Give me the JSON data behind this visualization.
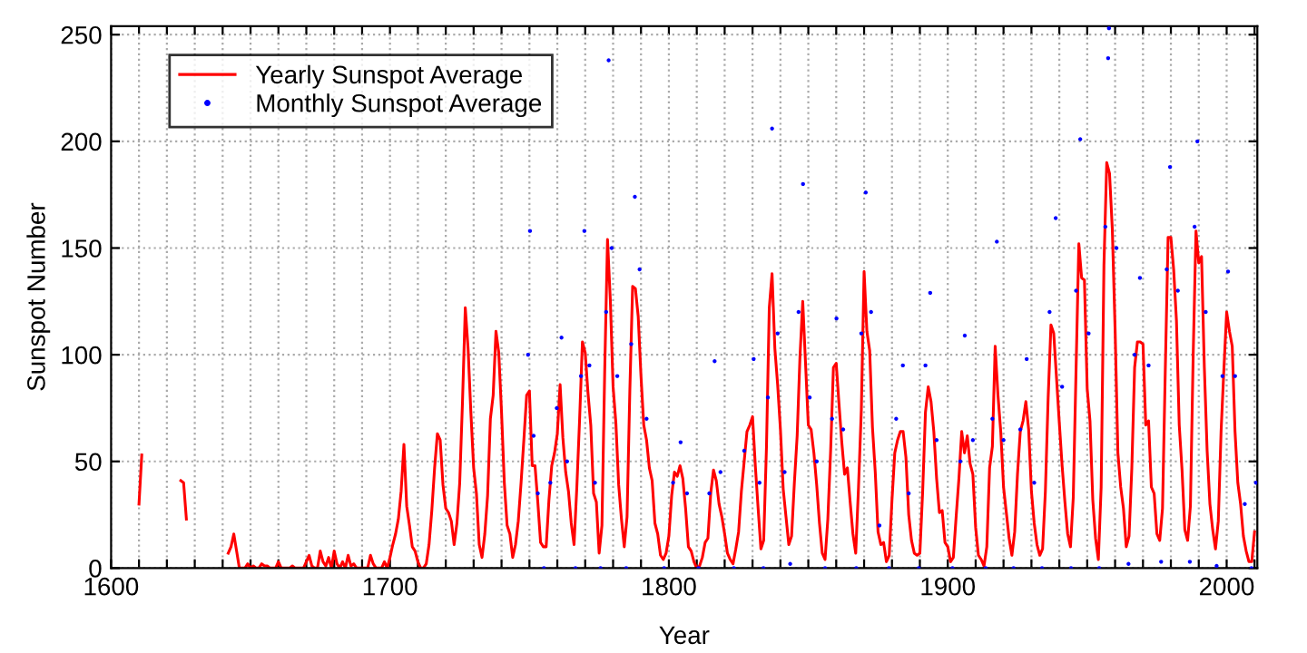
{
  "chart_data": {
    "type": "line",
    "xlabel": "Year",
    "ylabel": "Sunspot Number",
    "xlim": [
      1600,
      2011
    ],
    "ylim": [
      0,
      254
    ],
    "xticks": [
      1600,
      {
        "value": 1610,
        "label": null
      },
      {
        "value": 1620,
        "label": null
      },
      {
        "value": 1630,
        "label": null
      },
      {
        "value": 1640,
        "label": null
      },
      {
        "value": 1650,
        "label": null
      },
      {
        "value": 1660,
        "label": null
      },
      {
        "value": 1670,
        "label": null
      },
      {
        "value": 1680,
        "label": null
      },
      {
        "value": 1690,
        "label": null
      },
      1700,
      {
        "value": 1710,
        "label": null
      },
      {
        "value": 1720,
        "label": null
      },
      {
        "value": 1730,
        "label": null
      },
      {
        "value": 1740,
        "label": null
      },
      {
        "value": 1750,
        "label": null
      },
      {
        "value": 1760,
        "label": null
      },
      {
        "value": 1770,
        "label": null
      },
      {
        "value": 1780,
        "label": null
      },
      {
        "value": 1790,
        "label": null
      },
      1800,
      {
        "value": 1810,
        "label": null
      },
      {
        "value": 1820,
        "label": null
      },
      {
        "value": 1830,
        "label": null
      },
      {
        "value": 1840,
        "label": null
      },
      {
        "value": 1850,
        "label": null
      },
      {
        "value": 1860,
        "label": null
      },
      {
        "value": 1870,
        "label": null
      },
      {
        "value": 1880,
        "label": null
      },
      {
        "value": 1890,
        "label": null
      },
      1900,
      {
        "value": 1910,
        "label": null
      },
      {
        "value": 1920,
        "label": null
      },
      {
        "value": 1930,
        "label": null
      },
      {
        "value": 1940,
        "label": null
      },
      {
        "value": 1950,
        "label": null
      },
      {
        "value": 1960,
        "label": null
      },
      {
        "value": 1970,
        "label": null
      },
      {
        "value": 1980,
        "label": null
      },
      {
        "value": 1990,
        "label": null
      },
      2000,
      {
        "value": 2010,
        "label": null
      }
    ],
    "yticks": [
      0,
      50,
      100,
      150,
      200,
      250
    ],
    "grid": true,
    "legend": "top left",
    "series": [
      {
        "name": "Yearly Sunspot Average",
        "color": "#ff0000",
        "marker": "none",
        "x": [
          1610,
          1611,
          1612,
          1624,
          1625,
          1626,
          1627,
          1628,
          1641,
          1642,
          1643,
          1644,
          1645,
          1646,
          1647,
          1648,
          1649,
          1650,
          1651,
          1652,
          1653,
          1654,
          1655,
          1656,
          1657,
          1658,
          1659,
          1660,
          1661,
          1662,
          1663,
          1664,
          1665,
          1666,
          1667,
          1668,
          1669,
          1670,
          1671,
          1672,
          1673,
          1674,
          1675,
          1676,
          1677,
          1678,
          1679,
          1680,
          1681,
          1682,
          1683,
          1684,
          1685,
          1686,
          1687,
          1688,
          1689,
          1690,
          1691,
          1692,
          1693,
          1694,
          1695,
          1696,
          1697,
          1698,
          1699,
          1700,
          1701,
          1702,
          1703,
          1704,
          1705,
          1706,
          1707,
          1708,
          1709,
          1710,
          1711,
          1712,
          1713,
          1714,
          1715,
          1716,
          1717,
          1718,
          1719,
          1720,
          1721,
          1722,
          1723,
          1724,
          1725,
          1726,
          1727,
          1728,
          1729,
          1730,
          1731,
          1732,
          1733,
          1734,
          1735,
          1736,
          1737,
          1738,
          1739,
          1740,
          1741,
          1742,
          1743,
          1744,
          1745,
          1746,
          1747,
          1748,
          1749,
          1750,
          1751,
          1752,
          1753,
          1754,
          1755,
          1756,
          1757,
          1758,
          1759,
          1760,
          1761,
          1762,
          1763,
          1764,
          1765,
          1766,
          1767,
          1768,
          1769,
          1770,
          1771,
          1772,
          1773,
          1774,
          1775,
          1776,
          1777,
          1778,
          1779,
          1780,
          1781,
          1782,
          1783,
          1784,
          1785,
          1786,
          1787,
          1788,
          1789,
          1790,
          1791,
          1792,
          1793,
          1794,
          1795,
          1796,
          1797,
          1798,
          1799,
          1800,
          1801,
          1802,
          1803,
          1804,
          1805,
          1806,
          1807,
          1808,
          1809,
          1810,
          1811,
          1812,
          1813,
          1814,
          1815,
          1816,
          1817,
          1818,
          1819,
          1820,
          1821,
          1822,
          1823,
          1824,
          1825,
          1826,
          1827,
          1828,
          1829,
          1830,
          1831,
          1832,
          1833,
          1834,
          1835,
          1836,
          1837,
          1838,
          1839,
          1840,
          1841,
          1842,
          1843,
          1844,
          1845,
          1846,
          1847,
          1848,
          1849,
          1850,
          1851,
          1852,
          1853,
          1854,
          1855,
          1856,
          1857,
          1858,
          1859,
          1860,
          1861,
          1862,
          1863,
          1864,
          1865,
          1866,
          1867,
          1868,
          1869,
          1870,
          1871,
          1872,
          1873,
          1874,
          1875,
          1876,
          1877,
          1878,
          1879,
          1880,
          1881,
          1882,
          1883,
          1884,
          1885,
          1886,
          1887,
          1888,
          1889,
          1890,
          1891,
          1892,
          1893,
          1894,
          1895,
          1896,
          1897,
          1898,
          1899,
          1900,
          1901,
          1902,
          1903,
          1904,
          1905,
          1906,
          1907,
          1908,
          1909,
          1910,
          1911,
          1912,
          1913,
          1914,
          1915,
          1916,
          1917,
          1918,
          1919,
          1920,
          1921,
          1922,
          1923,
          1924,
          1925,
          1926,
          1927,
          1928,
          1929,
          1930,
          1931,
          1932,
          1933,
          1934,
          1935,
          1936,
          1937,
          1938,
          1939,
          1940,
          1941,
          1942,
          1943,
          1944,
          1945,
          1946,
          1947,
          1948,
          1949,
          1950,
          1951,
          1952,
          1953,
          1954,
          1955,
          1956,
          1957,
          1958,
          1959,
          1960,
          1961,
          1962,
          1963,
          1964,
          1965,
          1966,
          1967,
          1968,
          1969,
          1970,
          1971,
          1972,
          1973,
          1974,
          1975,
          1976,
          1977,
          1978,
          1979,
          1980,
          1981,
          1982,
          1983,
          1984,
          1985,
          1986,
          1987,
          1988,
          1989,
          1990,
          1991,
          1992,
          1993,
          1994,
          1995,
          1996,
          1997,
          1998,
          1999,
          2000,
          2001,
          2002,
          2003,
          2004,
          2005,
          2006,
          2007,
          2008,
          2009,
          2010
        ],
        "values": [
          30,
          53,
          null,
          null,
          41,
          40,
          23,
          null,
          null,
          7,
          10,
          16,
          8,
          0,
          0,
          0,
          2,
          0,
          1,
          0,
          0,
          2,
          1,
          1,
          0,
          0,
          0,
          3,
          0,
          0,
          0,
          0,
          1,
          0,
          0,
          0,
          0,
          3,
          6,
          1,
          0,
          0,
          8,
          3,
          1,
          5,
          0,
          8,
          2,
          0,
          3,
          0,
          6,
          1,
          2,
          0,
          0,
          0,
          0,
          0,
          6,
          2,
          0,
          0,
          0,
          3,
          0,
          5,
          11,
          16,
          23,
          36,
          58,
          29,
          20,
          10,
          8,
          3,
          0,
          0,
          2,
          11,
          27,
          47,
          63,
          60,
          39,
          28,
          26,
          22,
          11,
          21,
          40,
          78,
          122,
          103,
          73,
          47,
          35,
          11,
          5,
          16,
          34,
          70,
          81,
          111,
          101,
          73,
          40,
          20,
          16,
          5,
          11,
          22,
          40,
          60,
          81,
          83,
          48,
          48,
          31,
          12,
          10,
          10,
          32,
          48,
          54,
          63,
          86,
          61,
          45,
          36,
          21,
          11,
          38,
          70,
          106,
          101,
          82,
          67,
          35,
          31,
          7,
          20,
          93,
          154,
          126,
          85,
          68,
          39,
          23,
          10,
          24,
          83,
          132,
          131,
          118,
          90,
          67,
          60,
          47,
          41,
          21,
          16,
          6,
          4,
          7,
          15,
          34,
          45,
          43,
          48,
          42,
          28,
          10,
          8,
          3,
          0,
          1,
          5,
          12,
          14,
          35,
          46,
          41,
          30,
          24,
          16,
          7,
          4,
          2,
          9,
          17,
          36,
          50,
          64,
          67,
          71,
          48,
          28,
          9,
          13,
          57,
          122,
          138,
          103,
          86,
          65,
          37,
          24,
          11,
          15,
          40,
          62,
          99,
          125,
          96,
          67,
          65,
          54,
          39,
          21,
          7,
          4,
          23,
          55,
          94,
          96,
          77,
          59,
          44,
          47,
          31,
          16,
          7,
          38,
          74,
          139,
          111,
          102,
          66,
          45,
          17,
          11,
          12,
          3,
          6,
          32,
          54,
          60,
          64,
          64,
          52,
          25,
          13,
          7,
          6,
          7,
          36,
          73,
          85,
          78,
          64,
          42,
          26,
          27,
          12,
          10,
          3,
          5,
          24,
          42,
          64,
          54,
          62,
          49,
          44,
          19,
          6,
          4,
          1,
          10,
          47,
          57,
          104,
          81,
          64,
          38,
          26,
          14,
          6,
          17,
          44,
          64,
          69,
          78,
          65,
          36,
          21,
          11,
          6,
          9,
          36,
          80,
          114,
          110,
          89,
          68,
          48,
          31,
          16,
          10,
          33,
          93,
          152,
          136,
          135,
          84,
          69,
          32,
          14,
          4,
          38,
          142,
          190,
          185,
          159,
          112,
          54,
          38,
          28,
          10,
          15,
          47,
          94,
          106,
          106,
          105,
          67,
          69,
          38,
          35,
          16,
          13,
          28,
          93,
          155,
          155,
          140,
          116,
          67,
          46,
          18,
          13,
          29,
          100,
          158,
          143,
          146,
          94,
          55,
          30,
          18,
          9,
          22,
          64,
          93,
          120,
          111,
          104,
          64,
          40,
          30,
          15,
          8,
          3,
          3,
          17
        ]
      },
      {
        "name": "Monthly Sunspot Average",
        "type": "scatter",
        "color": "#0000ff",
        "marker": "circle",
        "x": [
          1749.5,
          1750.2,
          1751.5,
          1753.0,
          1755.2,
          1757.5,
          1759.8,
          1761.5,
          1763.5,
          1766.5,
          1768.5,
          1769.7,
          1771.5,
          1773.5,
          1775.5,
          1777.5,
          1778.4,
          1779.5,
          1781.5,
          1784.7,
          1786.5,
          1787.8,
          1789.5,
          1792.0,
          1798.3,
          1801.5,
          1804.2,
          1806.5,
          1810.6,
          1814.5,
          1816.4,
          1818.5,
          1823.3,
          1827.0,
          1830.4,
          1832.5,
          1833.9,
          1835.5,
          1837.0,
          1839.0,
          1841.5,
          1843.5,
          1846.5,
          1848.1,
          1850.5,
          1853.0,
          1856.0,
          1858.5,
          1860.1,
          1862.5,
          1867.2,
          1869.0,
          1870.6,
          1872.5,
          1875.5,
          1878.9,
          1881.5,
          1883.9,
          1886.0,
          1889.6,
          1892.0,
          1893.7,
          1896.0,
          1901.7,
          1904.5,
          1906.1,
          1909.0,
          1913.6,
          1916.0,
          1917.6,
          1920.0,
          1923.6,
          1926.0,
          1928.3,
          1931.0,
          1933.8,
          1936.5,
          1938.7,
          1941.0,
          1944.2,
          1946.0,
          1947.5,
          1950.5,
          1954.3,
          1956.5,
          1957.5,
          1957.8,
          1960.5,
          1964.8,
          1967.0,
          1968.9,
          1972.0,
          1976.5,
          1978.5,
          1979.7,
          1982.5,
          1986.8,
          1988.5,
          1989.5,
          1992.5,
          1996.4,
          1998.5,
          2000.5,
          2003.0,
          2006.5,
          2008.9,
          2010.5
        ],
        "values": [
          100,
          158,
          62,
          35,
          0,
          40,
          75,
          108,
          50,
          0,
          90,
          158,
          95,
          40,
          0,
          120,
          238,
          150,
          90,
          0,
          105,
          174,
          140,
          70,
          0,
          40,
          59,
          35,
          0,
          35,
          97,
          45,
          0,
          55,
          98,
          40,
          0,
          80,
          206,
          110,
          45,
          2,
          120,
          180,
          80,
          50,
          0,
          70,
          117,
          65,
          0,
          110,
          176,
          120,
          20,
          0,
          70,
          95,
          35,
          0,
          95,
          129,
          60,
          0,
          50,
          109,
          60,
          0,
          70,
          153,
          60,
          0,
          65,
          98,
          40,
          0,
          120,
          164,
          85,
          0,
          130,
          201,
          110,
          0,
          160,
          239,
          253,
          150,
          2,
          100,
          136,
          95,
          3,
          140,
          188,
          130,
          3,
          160,
          200,
          120,
          1,
          90,
          139,
          90,
          30,
          0,
          40
        ]
      }
    ]
  }
}
